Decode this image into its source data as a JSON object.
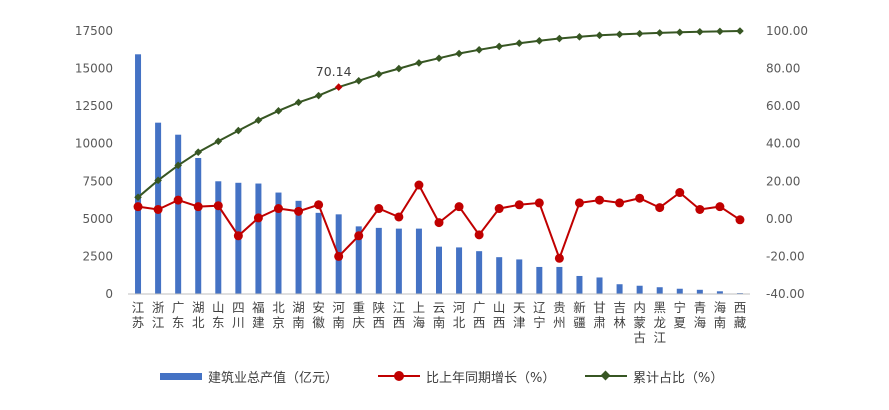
{
  "chart_data": {
    "type": "bar",
    "title": "",
    "categories": [
      "江苏",
      "浙江",
      "广东",
      "湖北",
      "山东",
      "四川",
      "福建",
      "北京",
      "湖南",
      "安徽",
      "河南",
      "重庆",
      "陕西",
      "江西",
      "上海",
      "云南",
      "河北",
      "广西",
      "山西",
      "天津",
      "辽宁",
      "贵州",
      "新疆",
      "甘肃",
      "吉林",
      "内蒙古",
      "黑龙江",
      "宁夏",
      "青海",
      "海南",
      "西藏"
    ],
    "category_labels": [
      [
        "江",
        "苏"
      ],
      [
        "浙",
        "江"
      ],
      [
        "广",
        "东"
      ],
      [
        "湖",
        "北"
      ],
      [
        "山",
        "东"
      ],
      [
        "四",
        "川"
      ],
      [
        "福",
        "建"
      ],
      [
        "北",
        "京"
      ],
      [
        "湖",
        "南"
      ],
      [
        "安",
        "徽"
      ],
      [
        "河",
        "南"
      ],
      [
        "重",
        "庆"
      ],
      [
        "陕",
        "西"
      ],
      [
        "江",
        "西"
      ],
      [
        "上",
        "海"
      ],
      [
        "云",
        "南"
      ],
      [
        "河",
        "北"
      ],
      [
        "广",
        "西"
      ],
      [
        "山",
        "西"
      ],
      [
        "天",
        "津"
      ],
      [
        "辽",
        "宁"
      ],
      [
        "贵",
        "州"
      ],
      [
        "新",
        "疆"
      ],
      [
        "甘",
        "肃"
      ],
      [
        "吉",
        "林"
      ],
      [
        "内",
        "蒙",
        "古"
      ],
      [
        "黑",
        "龙",
        "江"
      ],
      [
        "宁",
        "夏"
      ],
      [
        "青",
        "海"
      ],
      [
        "海",
        "南"
      ],
      [
        "西",
        "藏"
      ]
    ],
    "series": [
      {
        "name": "建筑业总产值（亿元）",
        "kind": "bar",
        "axis": "left",
        "color": "#4472C4",
        "values": [
          15950,
          11400,
          10600,
          9050,
          7500,
          7400,
          7350,
          6750,
          6200,
          5400,
          5300,
          4500,
          4400,
          4350,
          4350,
          3150,
          3100,
          2850,
          2450,
          2300,
          1800,
          1800,
          1200,
          1100,
          650,
          550,
          450,
          350,
          280,
          180,
          60
        ]
      },
      {
        "name": "比上年同期增长（%）",
        "kind": "line",
        "axis": "right",
        "color": "#C00000",
        "marker": "circle",
        "values": [
          6.5,
          5,
          10,
          6.5,
          7,
          -9,
          0.5,
          5.5,
          4,
          7.5,
          -20,
          -9,
          5.5,
          1,
          18,
          -2,
          6.5,
          -8.5,
          5.5,
          7.5,
          8.5,
          -21,
          8.5,
          10,
          8.5,
          11,
          6,
          14,
          5,
          6.5,
          -0.5
        ]
      },
      {
        "name": "累计占比（%）",
        "kind": "line",
        "axis": "right",
        "color": "#375623",
        "marker": "diamond",
        "values": [
          11.5,
          20.5,
          28.5,
          35.5,
          41.3,
          47,
          52.5,
          57.5,
          62,
          65.6,
          70.14,
          73.5,
          77,
          80,
          83,
          85.5,
          88,
          90,
          91.8,
          93.5,
          94.8,
          96,
          96.9,
          97.7,
          98.2,
          98.6,
          99,
          99.3,
          99.6,
          99.8,
          100
        ]
      }
    ],
    "annotations": [
      {
        "series": 2,
        "index": 10,
        "text": "70.14",
        "highlight_color": "#C00000"
      }
    ],
    "left_axis": {
      "min": 0,
      "max": 17500,
      "step": 2500,
      "tick_labels": [
        "0",
        "2500",
        "5000",
        "7500",
        "10000",
        "12500",
        "15000",
        "17500"
      ]
    },
    "right_axis": {
      "min": -40,
      "max": 100,
      "step": 20,
      "tick_labels": [
        "-40.00",
        "-20.00",
        "0.00",
        "20.00",
        "40.00",
        "60.00",
        "80.00",
        "100.00"
      ]
    },
    "xlabel": "",
    "ylabel": "",
    "grid": false,
    "legend_position": "bottom"
  }
}
